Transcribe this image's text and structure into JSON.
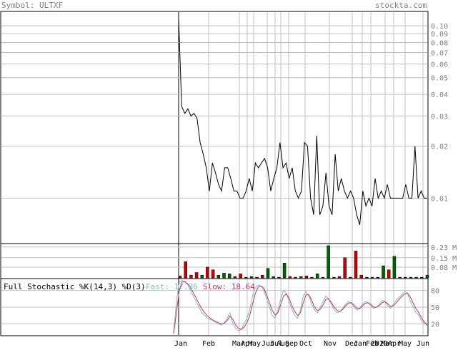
{
  "header": {
    "symbol_label": "Symbol: ULTXF",
    "site_label": "stockta.com",
    "text_color": "#808080"
  },
  "colors": {
    "frame": "#000000",
    "grid": "#c0c0c0",
    "price_line": "#000000",
    "vol_up": "#006400",
    "vol_down": "#cc0000",
    "fast": "#7fbfbf",
    "slow": "#cc3366"
  },
  "chart_data": [
    {
      "type": "line",
      "name": "price-panel",
      "y_scale": "log",
      "ylim": [
        0.0055,
        0.12
      ],
      "y_ticks": [
        0.1,
        0.09,
        0.08,
        0.07,
        0.06,
        0.05,
        0.04,
        0.03,
        0.02,
        0.01
      ],
      "y_tick_labels": [
        "0.10",
        "0.09",
        "0.08",
        "0.07",
        "0.06",
        "0.05",
        "0.04",
        "0.03",
        "0.02",
        "0.01"
      ],
      "x_month_labels": [
        "Jan",
        "Feb",
        "Mar",
        "Apr",
        "May",
        "Jun",
        "Jul",
        "Aug",
        "Sep",
        "Oct",
        "Nov",
        "Dec",
        "Jan 2020",
        "Feb",
        "Mar",
        "Apr",
        "May",
        "Jun"
      ],
      "prices": [
        0.11,
        0.034,
        0.031,
        0.033,
        0.03,
        0.031,
        0.029,
        0.021,
        0.018,
        0.015,
        0.011,
        0.016,
        0.014,
        0.012,
        0.011,
        0.015,
        0.015,
        0.013,
        0.011,
        0.011,
        0.01,
        0.01,
        0.011,
        0.013,
        0.011,
        0.016,
        0.015,
        0.016,
        0.017,
        0.015,
        0.011,
        0.013,
        0.015,
        0.021,
        0.015,
        0.016,
        0.013,
        0.015,
        0.011,
        0.01,
        0.011,
        0.021,
        0.02,
        0.01,
        0.008,
        0.023,
        0.008,
        0.009,
        0.014,
        0.009,
        0.008,
        0.018,
        0.011,
        0.013,
        0.011,
        0.01,
        0.011,
        0.01,
        0.008,
        0.007,
        0.011,
        0.009,
        0.01,
        0.009,
        0.013,
        0.01,
        0.011,
        0.01,
        0.012,
        0.01,
        0.01,
        0.01,
        0.01,
        0.01,
        0.012,
        0.01,
        0.01,
        0.02,
        0.01,
        0.011,
        0.01,
        0.01
      ]
    },
    {
      "type": "bar",
      "name": "volume-panel",
      "ylim": [
        0,
        0.25
      ],
      "y_ticks": [
        0.23,
        0.15,
        0.08
      ],
      "y_tick_labels": [
        "0.23 M",
        "0.15 M",
        "0.08 M"
      ],
      "bars": [
        {
          "v": 0.015,
          "up": false
        },
        {
          "v": 0.12,
          "up": false
        },
        {
          "v": 0.02,
          "up": false
        },
        {
          "v": 0.04,
          "up": false
        },
        {
          "v": 0.02,
          "up": true
        },
        {
          "v": 0.08,
          "up": false
        },
        {
          "v": 0.06,
          "up": false
        },
        {
          "v": 0.02,
          "up": true
        },
        {
          "v": 0.035,
          "up": true
        },
        {
          "v": 0.03,
          "up": true
        },
        {
          "v": 0.01,
          "up": false
        },
        {
          "v": 0.03,
          "up": false
        },
        {
          "v": 0.005,
          "up": false
        },
        {
          "v": 0.01,
          "up": true
        },
        {
          "v": 0.005,
          "up": false
        },
        {
          "v": 0.02,
          "up": false
        },
        {
          "v": 0.07,
          "up": true
        },
        {
          "v": 0.01,
          "up": true
        },
        {
          "v": 0.005,
          "up": false
        },
        {
          "v": 0.11,
          "up": true
        },
        {
          "v": 0.01,
          "up": false
        },
        {
          "v": 0.005,
          "up": false
        },
        {
          "v": 0.01,
          "up": true
        },
        {
          "v": 0.015,
          "up": false
        },
        {
          "v": 0.005,
          "up": false
        },
        {
          "v": 0.03,
          "up": true
        },
        {
          "v": 0.005,
          "up": false
        },
        {
          "v": 0.24,
          "up": true
        },
        {
          "v": 0.005,
          "up": true
        },
        {
          "v": 0.01,
          "up": false
        },
        {
          "v": 0.15,
          "up": false
        },
        {
          "v": 0.005,
          "up": false
        },
        {
          "v": 0.2,
          "up": false
        },
        {
          "v": 0.02,
          "up": false
        },
        {
          "v": 0.005,
          "up": true
        },
        {
          "v": 0.005,
          "up": false
        },
        {
          "v": 0.005,
          "up": true
        },
        {
          "v": 0.09,
          "up": true
        },
        {
          "v": 0.06,
          "up": false
        },
        {
          "v": 0.16,
          "up": true
        },
        {
          "v": 0.005,
          "up": false
        },
        {
          "v": 0.005,
          "up": true
        },
        {
          "v": 0.005,
          "up": true
        },
        {
          "v": 0.005,
          "up": false
        },
        {
          "v": 0.005,
          "up": true
        },
        {
          "v": 0.02,
          "up": true
        }
      ]
    },
    {
      "type": "line",
      "name": "stochastic-panel",
      "title": "Full Stochastic %K(14,3) %D(3)",
      "fast_label": "Fast: 17.36",
      "slow_label": "Slow: 18.64",
      "ylim": [
        0,
        100
      ],
      "y_ticks": [
        80,
        50,
        20
      ],
      "y_tick_labels": [
        "80",
        "50",
        "20"
      ],
      "series": [
        {
          "name": "Fast",
          "values": [
            5,
            60,
            95,
            98,
            95,
            90,
            80,
            70,
            60,
            50,
            40,
            35,
            30,
            28,
            25,
            22,
            20,
            18,
            22,
            30,
            40,
            20,
            12,
            8,
            10,
            20,
            30,
            45,
            70,
            85,
            90,
            88,
            80,
            65,
            50,
            35,
            30,
            45,
            65,
            80,
            75,
            60,
            45,
            35,
            30,
            45,
            70,
            78,
            70,
            55,
            45,
            40,
            50,
            60,
            70,
            65,
            55,
            45,
            40,
            42,
            48,
            55,
            60,
            58,
            50,
            45,
            48,
            55,
            60,
            58,
            52,
            48,
            50,
            55,
            62,
            60,
            52,
            48,
            55,
            62,
            68,
            72,
            78,
            75,
            60,
            50,
            40,
            35,
            25,
            20,
            17
          ]
        },
        {
          "name": "Slow",
          "values": [
            2,
            40,
            80,
            95,
            96,
            92,
            85,
            76,
            66,
            56,
            47,
            40,
            34,
            30,
            27,
            24,
            22,
            20,
            21,
            26,
            34,
            28,
            18,
            12,
            10,
            14,
            22,
            35,
            55,
            75,
            86,
            88,
            84,
            72,
            58,
            44,
            36,
            40,
            55,
            70,
            74,
            66,
            52,
            42,
            35,
            40,
            58,
            72,
            72,
            62,
            50,
            44,
            46,
            54,
            64,
            65,
            58,
            50,
            44,
            42,
            46,
            52,
            57,
            58,
            54,
            48,
            47,
            52,
            57,
            58,
            55,
            50,
            50,
            53,
            58,
            60,
            56,
            51,
            53,
            58,
            64,
            69,
            74,
            75,
            68,
            57,
            47,
            40,
            30,
            23,
            18.64
          ]
        }
      ]
    }
  ]
}
